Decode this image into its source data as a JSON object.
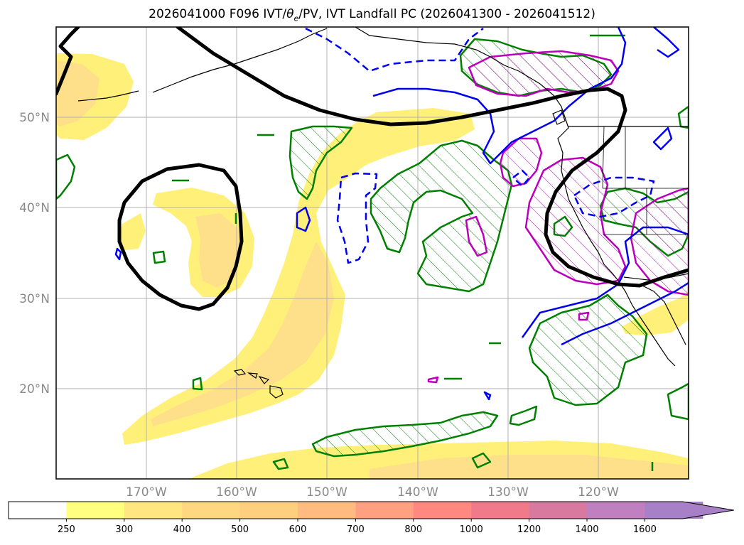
{
  "title": {
    "prefix": "2026041000 F096 IVT/",
    "theta": "θ",
    "theta_sub": "e",
    "suffix": "/PV, IVT Landfall PC (2026041300 - 2026041512)"
  },
  "lat_labels": [
    "50°N",
    "40°N",
    "30°N",
    "20°N"
  ],
  "lon_labels": [
    "170°W",
    "160°W",
    "150°W",
    "140°W",
    "130°W",
    "120°W"
  ],
  "colorbar": {
    "ticks": [
      "250",
      "300",
      "400",
      "500",
      "600",
      "700",
      "800",
      "1000",
      "1200",
      "1400",
      "1600"
    ],
    "colors": [
      "#ffffff",
      "#ffff80",
      "#ffe680",
      "#ffd780",
      "#ffcf80",
      "#ffbb80",
      "#ffa080",
      "#ff8880",
      "#f07a8a",
      "#d87aa0",
      "#c080c0",
      "#a880c8"
    ],
    "extend": "max"
  },
  "colors": {
    "ivt_250": "#fff07a",
    "ivt_300": "#ffe08a",
    "pv_contour": "#000000",
    "theta_e_positive": "#0000ee",
    "landfall_pc": "#008000",
    "magenta_pc": "#bb00bb",
    "coast": "#000000"
  }
}
